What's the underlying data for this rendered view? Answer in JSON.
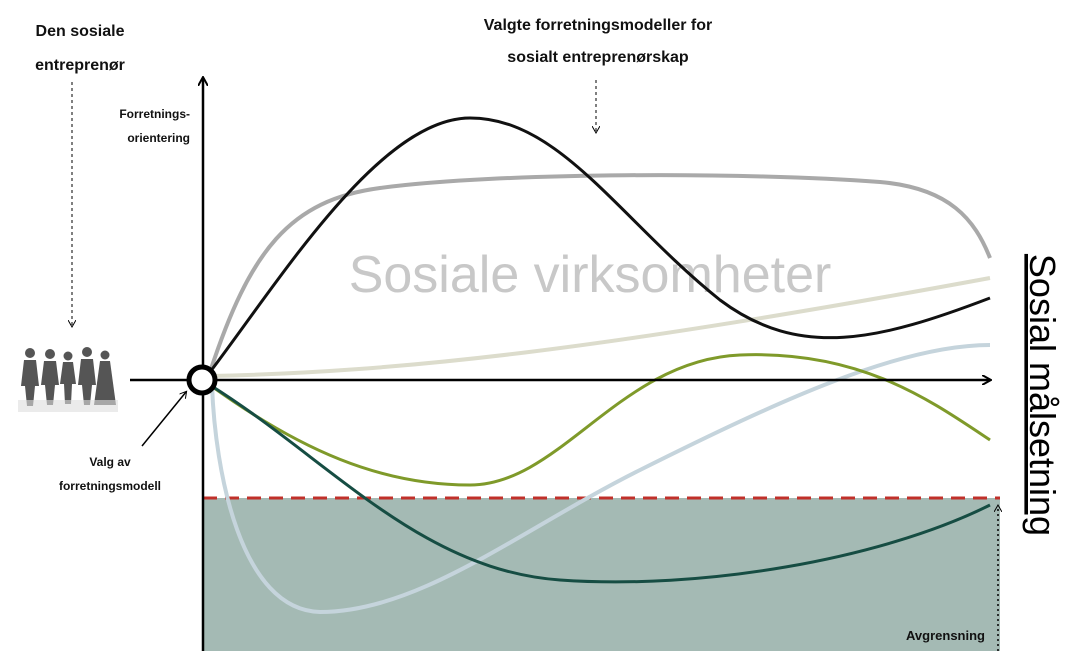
{
  "header": {
    "left_title": [
      "Den sosiale",
      "entreprenør"
    ],
    "top_title": [
      "Valgte forretningsmodeller for",
      "sosialt entreprenørskap"
    ]
  },
  "axes": {
    "y_label": [
      "Forretnings-",
      "orientering"
    ],
    "x_label": "Sosial målsetning"
  },
  "region_label": "Sosiale virksomheter",
  "origin_label": [
    "Valg av",
    "forretningsmodell"
  ],
  "boundary_label": "Avgrensning"
}
